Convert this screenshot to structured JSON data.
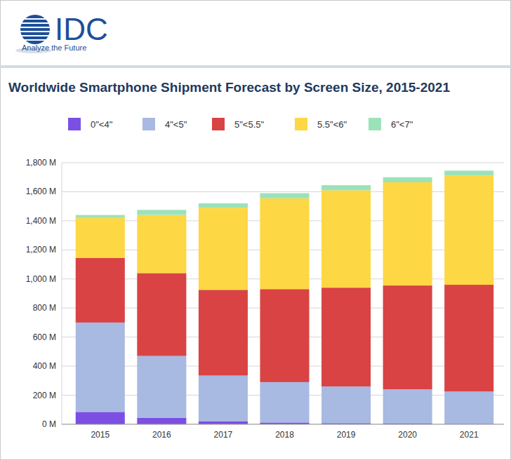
{
  "logo": {
    "name": "IDC",
    "tagline": "Analyze the Future"
  },
  "chart_data": {
    "type": "bar",
    "stacked": true,
    "grid": true,
    "legend": "top",
    "title": "Worldwide Smartphone Shipment Forecast by Screen Size, 2015-2021",
    "categories": [
      "2015",
      "2016",
      "2017",
      "2018",
      "2019",
      "2020",
      "2021"
    ],
    "series": [
      {
        "name": "0\"<4\"",
        "color": "#7b4fe3",
        "values": [
          85,
          45,
          20,
          12,
          8,
          5,
          3
        ]
      },
      {
        "name": "4\"<5\"",
        "color": "#a8b9e2",
        "values": [
          615,
          425,
          315,
          278,
          252,
          235,
          222
        ]
      },
      {
        "name": "5\"<5.5\"",
        "color": "#d94343",
        "values": [
          445,
          570,
          590,
          640,
          680,
          715,
          735
        ]
      },
      {
        "name": "5.5\"<6\"",
        "color": "#fdd744",
        "values": [
          275,
          400,
          565,
          625,
          670,
          710,
          750
        ]
      },
      {
        "name": "6\"<7\"",
        "color": "#9ce2b8",
        "values": [
          20,
          35,
          30,
          35,
          35,
          35,
          35
        ]
      }
    ],
    "ylim": [
      0,
      1800
    ],
    "yticks": [
      {
        "value": 0,
        "label": "0 M"
      },
      {
        "value": 200,
        "label": "200 M"
      },
      {
        "value": 400,
        "label": "400 M"
      },
      {
        "value": 600,
        "label": "600 M"
      },
      {
        "value": 800,
        "label": "800 M"
      },
      {
        "value": 1000,
        "label": "1,000 M"
      },
      {
        "value": 1200,
        "label": "1,200 M"
      },
      {
        "value": 1400,
        "label": "1,400 M"
      },
      {
        "value": 1600,
        "label": "1,600 M"
      },
      {
        "value": 1800,
        "label": "1,800 M"
      }
    ]
  }
}
